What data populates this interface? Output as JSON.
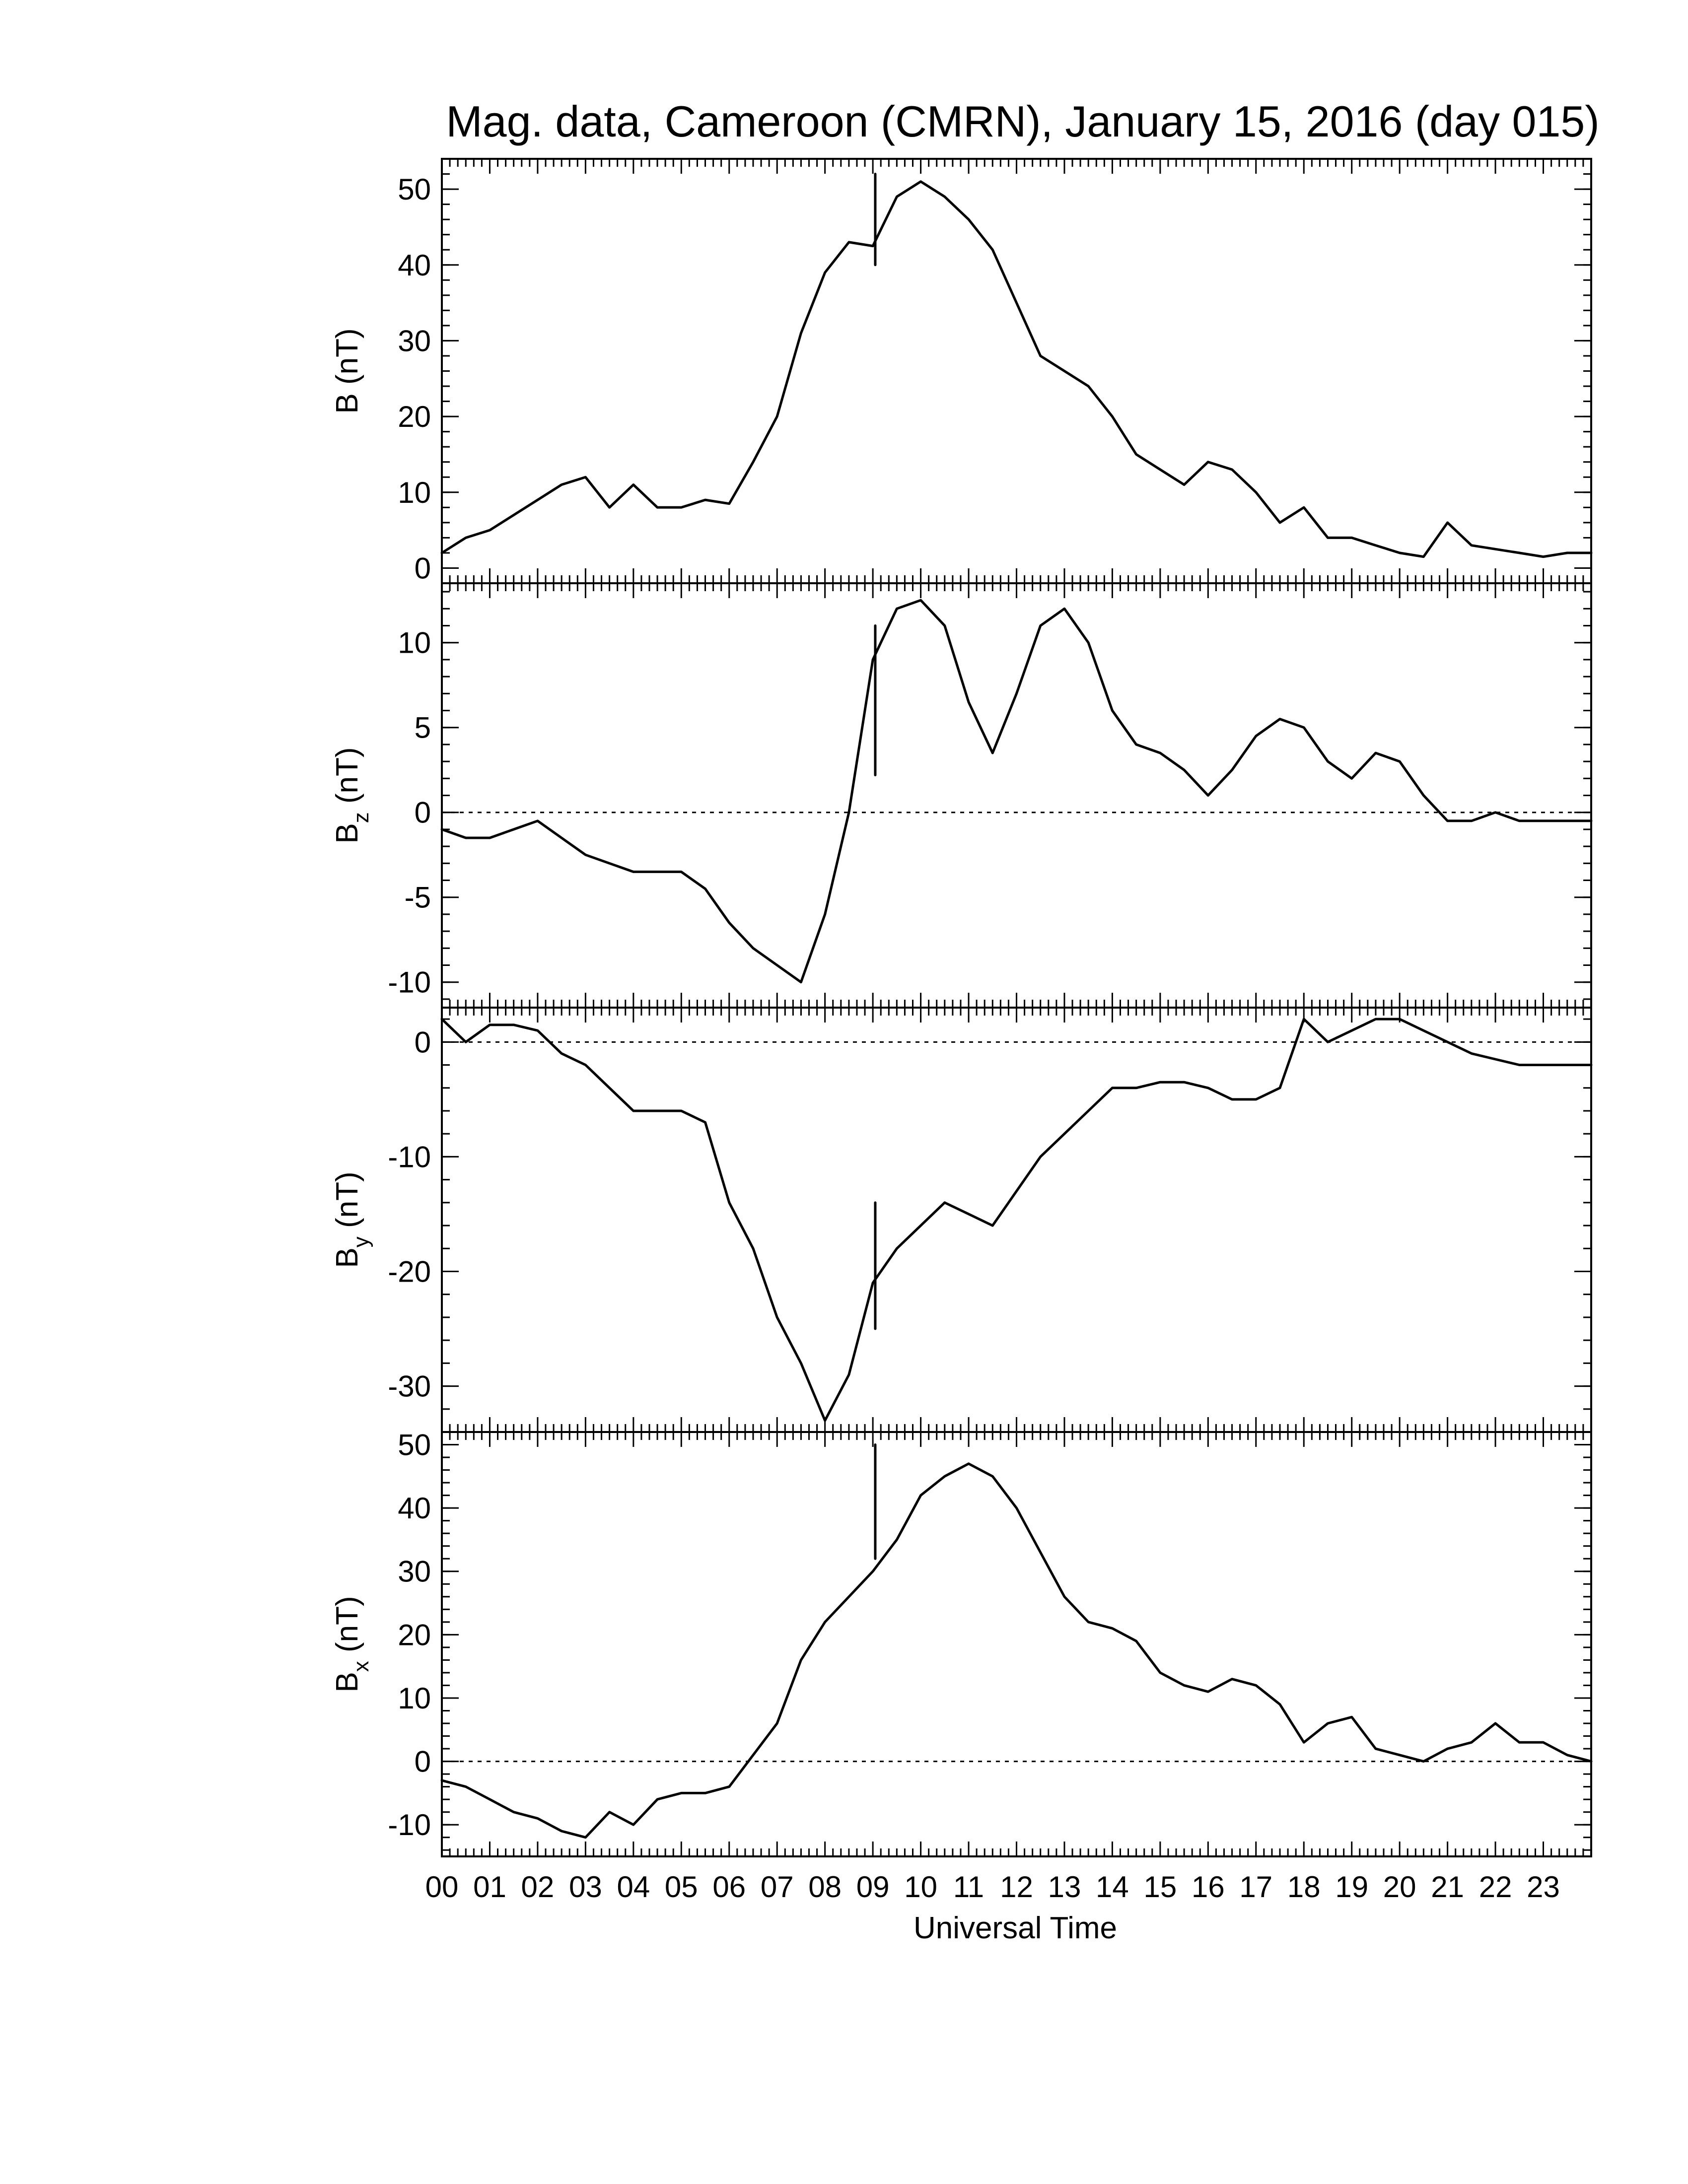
{
  "chart_data": {
    "type": "line",
    "title": "Mag. data, Cameroon (CMRN), January 15, 2016 (day 015)",
    "xlabel": "Universal Time",
    "xlim": [
      0,
      24
    ],
    "x_tick_labels": [
      "00",
      "01",
      "02",
      "03",
      "04",
      "05",
      "06",
      "07",
      "08",
      "09",
      "10",
      "11",
      "12",
      "13",
      "14",
      "15",
      "16",
      "17",
      "18",
      "19",
      "20",
      "21",
      "22",
      "23"
    ],
    "x_hours": [
      0,
      0.5,
      1,
      1.5,
      2,
      2.5,
      3,
      3.5,
      4,
      4.5,
      5,
      5.5,
      6,
      6.5,
      7,
      7.5,
      8,
      8.5,
      9,
      9.5,
      10,
      10.5,
      11,
      11.5,
      12,
      12.5,
      13,
      13.5,
      14,
      14.5,
      15,
      15.5,
      16,
      16.5,
      17,
      17.5,
      18,
      18.5,
      19,
      19.5,
      20,
      20.5,
      21,
      21.5,
      22,
      22.5,
      23,
      23.5,
      24
    ],
    "panels": [
      {
        "ylabel": "B (nT)",
        "ylabel_sub": "",
        "ylim": [
          -2,
          54
        ],
        "yticks": [
          0,
          10,
          20,
          30,
          40,
          50
        ],
        "yticklabels": [
          "0",
          "10",
          "20",
          "30",
          "40",
          "50"
        ],
        "zero_line": false,
        "values": [
          2,
          4,
          5,
          7,
          9,
          11,
          12,
          8,
          11,
          8,
          8,
          9,
          8.5,
          14,
          20,
          31,
          39,
          43,
          42.5,
          49,
          51,
          49,
          46,
          42,
          35,
          28,
          26,
          24,
          20,
          15,
          13,
          11,
          14,
          13,
          10,
          6,
          8,
          4,
          4,
          3,
          2,
          1.5,
          6,
          3,
          2.5,
          2,
          1.5,
          2,
          2
        ],
        "spike": {
          "x": 9.05,
          "y_low": 40,
          "y_high": 52
        }
      },
      {
        "ylabel": "B",
        "ylabel_sub": "z",
        "ylabel_unit": " (nT)",
        "ylim": [
          -11.5,
          13.5
        ],
        "yticks": [
          -10,
          -5,
          0,
          5,
          10
        ],
        "yticklabels": [
          "-10",
          "-5",
          "0",
          "5",
          "10"
        ],
        "zero_line": true,
        "values": [
          -1,
          -1.5,
          -1.5,
          -1,
          -0.5,
          -1.5,
          -2.5,
          -3,
          -3.5,
          -3.5,
          -3.5,
          -4.5,
          -6.5,
          -8,
          -9,
          -10,
          -6,
          0,
          9,
          12,
          12.5,
          11,
          6.5,
          3.5,
          7,
          11,
          12,
          10,
          6,
          4,
          3.5,
          2.5,
          1,
          2.5,
          4.5,
          5.5,
          5,
          3,
          2,
          3.5,
          3,
          1,
          -0.5,
          -0.5,
          0,
          -0.5,
          -0.5,
          -0.5,
          -0.5
        ],
        "spike": {
          "x": 9.05,
          "y_low": 2.2,
          "y_high": 11
        }
      },
      {
        "ylabel": "B",
        "ylabel_sub": "y",
        "ylabel_unit": " (nT)",
        "ylim": [
          -34,
          3
        ],
        "yticks": [
          -30,
          -20,
          -10,
          0
        ],
        "yticklabels": [
          "-30",
          "-20",
          "-10",
          "0"
        ],
        "zero_line": true,
        "values": [
          2,
          0,
          1.5,
          1.5,
          1,
          -1,
          -2,
          -4,
          -6,
          -6,
          -6,
          -7,
          -14,
          -18,
          -24,
          -28,
          -33,
          -29,
          -21,
          -18,
          -16,
          -14,
          -15,
          -16,
          -13,
          -10,
          -8,
          -6,
          -4,
          -4,
          -3.5,
          -3.5,
          -4,
          -5,
          -5,
          -4,
          2,
          0,
          1,
          2,
          2,
          1,
          0,
          -1,
          -1.5,
          -2,
          -2,
          -2,
          -2
        ],
        "spike": {
          "x": 9.05,
          "y_low": -25,
          "y_high": -14
        }
      },
      {
        "ylabel": "B",
        "ylabel_sub": "x",
        "ylabel_unit": " (nT)",
        "ylim": [
          -15,
          52
        ],
        "yticks": [
          -10,
          0,
          10,
          20,
          30,
          40,
          50
        ],
        "yticklabels": [
          "-10",
          "0",
          "10",
          "20",
          "30",
          "40",
          "50"
        ],
        "zero_line": true,
        "values": [
          -3,
          -4,
          -6,
          -8,
          -9,
          -11,
          -12,
          -8,
          -10,
          -6,
          -5,
          -5,
          -4,
          1,
          6,
          16,
          22,
          26,
          30,
          35,
          42,
          45,
          47,
          45,
          40,
          33,
          26,
          22,
          21,
          19,
          14,
          12,
          11,
          13,
          12,
          9,
          3,
          6,
          7,
          2,
          1,
          0,
          2,
          3,
          6,
          3,
          3,
          1,
          0
        ],
        "spike": {
          "x": 9.05,
          "y_low": 32,
          "y_high": 50
        }
      }
    ]
  }
}
